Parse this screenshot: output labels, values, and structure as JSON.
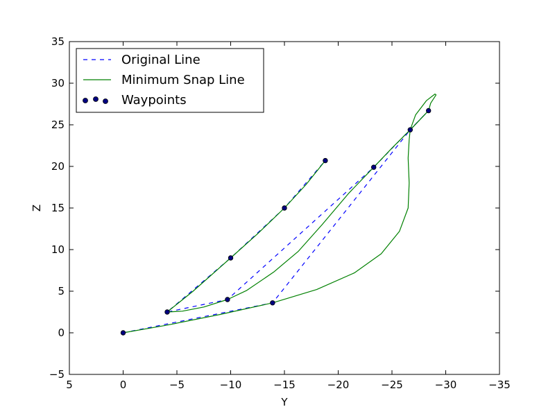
{
  "chart_data": {
    "type": "line",
    "xlabel": "Y",
    "ylabel": "Z",
    "xlim": [
      5,
      -35
    ],
    "ylim": [
      -5,
      35
    ],
    "x_ticks": [
      5,
      0,
      -5,
      -10,
      -15,
      -20,
      -25,
      -30,
      -35
    ],
    "x_tick_labels": [
      "5",
      "0",
      "−5",
      "−10",
      "−15",
      "−20",
      "−25",
      "−30",
      "−35"
    ],
    "y_ticks": [
      -5,
      0,
      5,
      10,
      15,
      20,
      25,
      30,
      35
    ],
    "y_tick_labels": [
      "−5",
      "0",
      "5",
      "10",
      "15",
      "20",
      "25",
      "30",
      "35"
    ],
    "grid": false,
    "legend": {
      "placement": "top-left",
      "entries": [
        {
          "label": "Original Line",
          "style": "dashed",
          "color": "#0000ff"
        },
        {
          "label": "Minimum Snap Line",
          "style": "solid",
          "color": "#008000"
        },
        {
          "label": "Waypoints",
          "style": "scatter",
          "color": "#000080"
        }
      ]
    },
    "waypoints": [
      {
        "y": 0.0,
        "z": 0.0
      },
      {
        "y": -13.9,
        "z": 3.6
      },
      {
        "y": -26.7,
        "z": 24.4
      },
      {
        "y": -28.4,
        "z": 26.7
      },
      {
        "y": -23.3,
        "z": 19.9
      },
      {
        "y": -9.7,
        "z": 4.0
      },
      {
        "y": -4.1,
        "z": 2.5
      },
      {
        "y": -10.0,
        "z": 9.0
      },
      {
        "y": -15.0,
        "z": 15.0
      },
      {
        "y": -18.8,
        "z": 20.7
      }
    ],
    "series": [
      {
        "name": "Original Line",
        "color": "#0000ff",
        "style": "dashed",
        "points": [
          [
            0.0,
            0.0
          ],
          [
            -13.9,
            3.6
          ],
          [
            -26.7,
            24.4
          ],
          [
            -28.4,
            26.7
          ],
          [
            -23.3,
            19.9
          ],
          [
            -9.7,
            4.0
          ],
          [
            -4.1,
            2.5
          ],
          [
            -10.0,
            9.0
          ],
          [
            -15.0,
            15.0
          ],
          [
            -18.8,
            20.7
          ]
        ]
      },
      {
        "name": "Minimum Snap Line",
        "color": "#008000",
        "style": "solid",
        "points": [
          [
            0.0,
            0.0
          ],
          [
            -4.0,
            0.9
          ],
          [
            -9.0,
            2.2
          ],
          [
            -13.9,
            3.6
          ],
          [
            -18.0,
            5.2
          ],
          [
            -21.5,
            7.2
          ],
          [
            -24.0,
            9.5
          ],
          [
            -25.7,
            12.2
          ],
          [
            -26.5,
            15.0
          ],
          [
            -26.6,
            18.0
          ],
          [
            -26.5,
            21.0
          ],
          [
            -26.6,
            23.2
          ],
          [
            -26.7,
            24.4
          ],
          [
            -27.2,
            26.2
          ],
          [
            -28.2,
            27.9
          ],
          [
            -29.0,
            28.7
          ],
          [
            -29.1,
            28.6
          ],
          [
            -28.6,
            27.6
          ],
          [
            -28.4,
            26.7
          ],
          [
            -27.0,
            24.8
          ],
          [
            -25.0,
            22.2
          ],
          [
            -23.3,
            19.9
          ],
          [
            -21.0,
            16.8
          ],
          [
            -18.5,
            13.0
          ],
          [
            -16.3,
            9.8
          ],
          [
            -14.0,
            7.3
          ],
          [
            -11.5,
            5.1
          ],
          [
            -9.7,
            4.0
          ],
          [
            -7.5,
            3.1
          ],
          [
            -5.5,
            2.6
          ],
          [
            -4.1,
            2.5
          ],
          [
            -6.5,
            5.0
          ],
          [
            -10.0,
            9.0
          ],
          [
            -12.5,
            11.9
          ],
          [
            -15.0,
            15.0
          ],
          [
            -17.0,
            17.8
          ],
          [
            -18.8,
            20.7
          ]
        ]
      }
    ]
  }
}
